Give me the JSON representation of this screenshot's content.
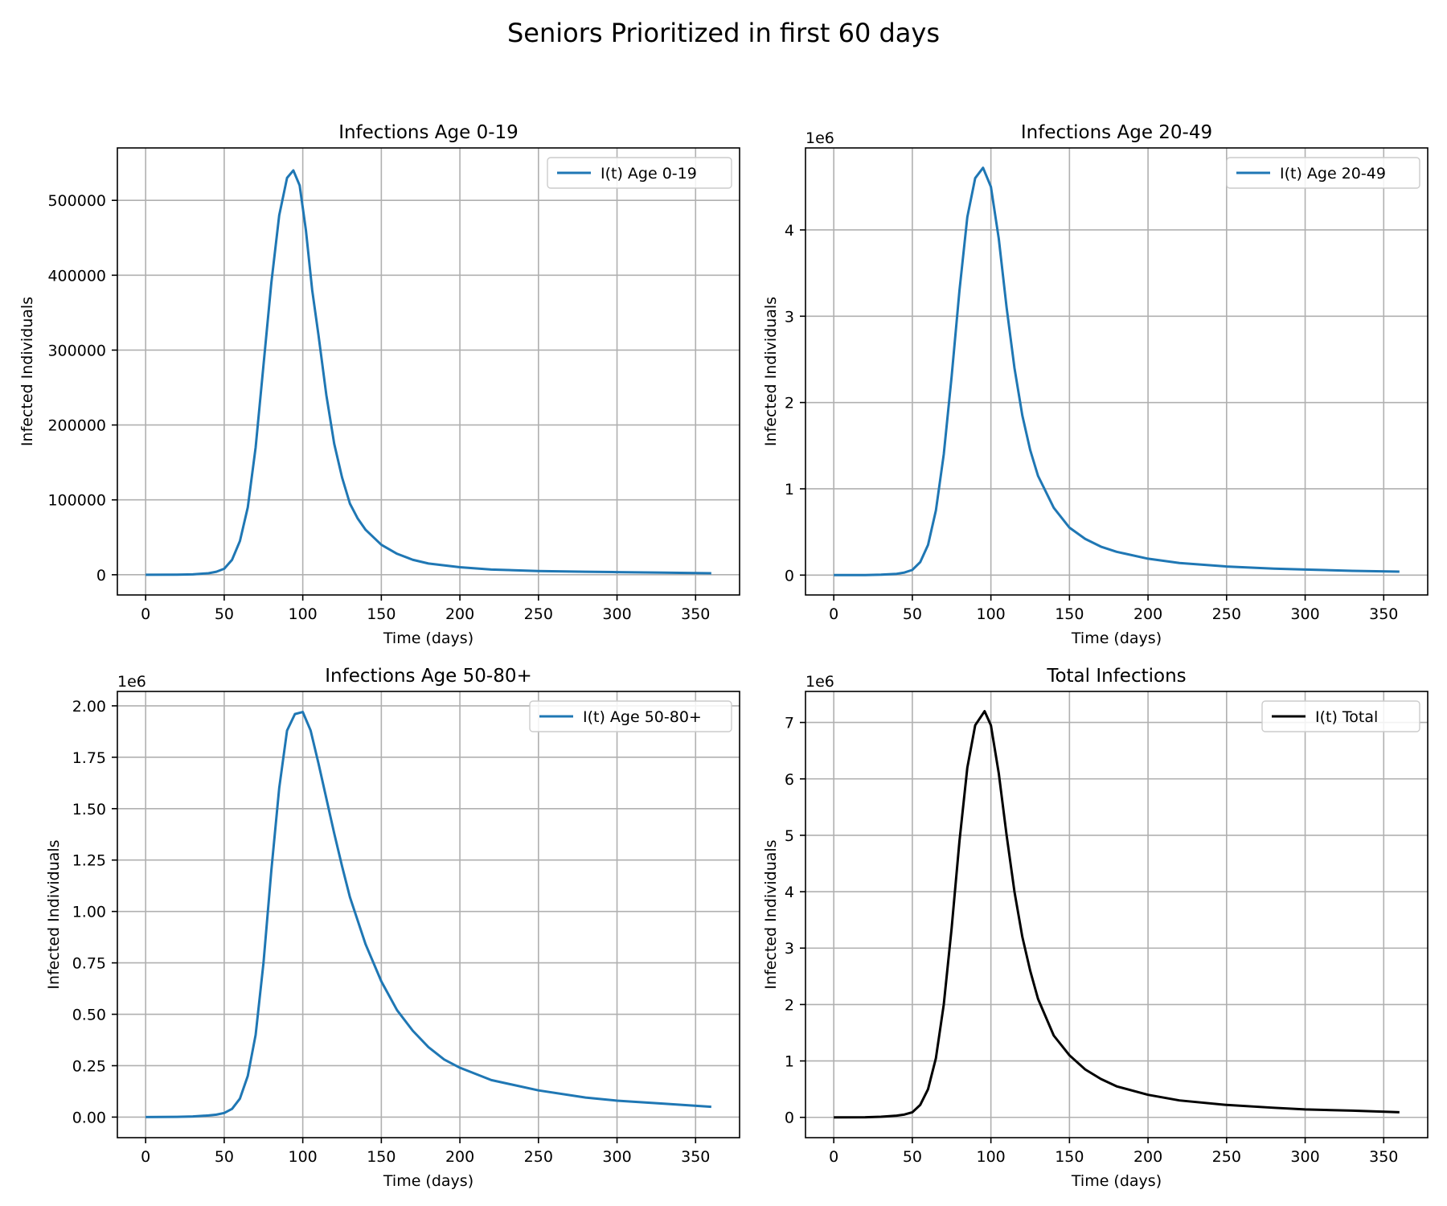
{
  "figure": {
    "title": "Seniors Prioritized in first 60 days"
  },
  "chart_data": [
    {
      "type": "line",
      "title": "Infections Age 0-19",
      "xlabel": "Time (days)",
      "ylabel": "Infected Individuals",
      "y_offset_label": "",
      "xlim": [
        -18,
        378
      ],
      "ylim": [
        -27000,
        570000
      ],
      "xticks": [
        0,
        50,
        100,
        150,
        200,
        250,
        300,
        350
      ],
      "xtick_labels": [
        "0",
        "50",
        "100",
        "150",
        "200",
        "250",
        "300",
        "350"
      ],
      "yticks": [
        0,
        100000,
        200000,
        300000,
        400000,
        500000
      ],
      "ytick_labels": [
        "0",
        "100000",
        "200000",
        "300000",
        "400000",
        "500000"
      ],
      "grid": true,
      "legend_position": "upper-right",
      "series": [
        {
          "name": "I(t) Age 0-19",
          "color": "#1f77b4",
          "x": [
            0,
            20,
            30,
            40,
            45,
            50,
            55,
            60,
            65,
            70,
            75,
            80,
            85,
            90,
            94,
            98,
            102,
            106,
            110,
            115,
            120,
            125,
            130,
            135,
            140,
            150,
            160,
            170,
            180,
            200,
            220,
            250,
            280,
            300,
            330,
            360
          ],
          "y": [
            0,
            100,
            500,
            2000,
            4000,
            8000,
            20000,
            45000,
            90000,
            170000,
            280000,
            390000,
            480000,
            530000,
            540000,
            520000,
            460000,
            380000,
            320000,
            240000,
            175000,
            130000,
            95000,
            75000,
            60000,
            40000,
            28000,
            20000,
            15000,
            10000,
            7000,
            5000,
            4000,
            3500,
            2800,
            2000
          ]
        }
      ]
    },
    {
      "type": "line",
      "title": "Infections Age 20-49",
      "xlabel": "Time (days)",
      "ylabel": "Infected Individuals",
      "y_offset_label": "1e6",
      "xlim": [
        -18,
        378
      ],
      "ylim": [
        -0.23,
        4.95
      ],
      "xticks": [
        0,
        50,
        100,
        150,
        200,
        250,
        300,
        350
      ],
      "xtick_labels": [
        "0",
        "50",
        "100",
        "150",
        "200",
        "250",
        "300",
        "350"
      ],
      "yticks": [
        0,
        1,
        2,
        3,
        4
      ],
      "ytick_labels": [
        "0",
        "1",
        "2",
        "3",
        "4"
      ],
      "grid": true,
      "legend_position": "upper-right",
      "series": [
        {
          "name": "I(t) Age 20-49",
          "color": "#1f77b4",
          "x": [
            0,
            20,
            30,
            40,
            45,
            50,
            55,
            60,
            65,
            70,
            75,
            80,
            85,
            90,
            95,
            100,
            105,
            110,
            115,
            120,
            125,
            130,
            140,
            150,
            160,
            170,
            180,
            200,
            220,
            250,
            280,
            300,
            330,
            360
          ],
          "y": [
            0,
            0.001,
            0.005,
            0.015,
            0.03,
            0.06,
            0.15,
            0.35,
            0.75,
            1.4,
            2.3,
            3.3,
            4.15,
            4.6,
            4.72,
            4.5,
            3.9,
            3.1,
            2.4,
            1.85,
            1.45,
            1.15,
            0.78,
            0.55,
            0.42,
            0.33,
            0.27,
            0.19,
            0.14,
            0.1,
            0.075,
            0.065,
            0.05,
            0.04
          ]
        }
      ]
    },
    {
      "type": "line",
      "title": "Infections Age 50-80+",
      "xlabel": "Time (days)",
      "ylabel": "Infected Individuals",
      "y_offset_label": "1e6",
      "xlim": [
        -18,
        378
      ],
      "ylim": [
        -0.1,
        2.07
      ],
      "xticks": [
        0,
        50,
        100,
        150,
        200,
        250,
        300,
        350
      ],
      "xtick_labels": [
        "0",
        "50",
        "100",
        "150",
        "200",
        "250",
        "300",
        "350"
      ],
      "yticks": [
        0,
        0.25,
        0.5,
        0.75,
        1.0,
        1.25,
        1.5,
        1.75,
        2.0
      ],
      "ytick_labels": [
        "0.00",
        "0.25",
        "0.50",
        "0.75",
        "1.00",
        "1.25",
        "1.50",
        "1.75",
        "2.00"
      ],
      "grid": true,
      "legend_position": "upper-right",
      "series": [
        {
          "name": "I(t) Age 50-80+",
          "color": "#1f77b4",
          "x": [
            0,
            20,
            30,
            40,
            45,
            50,
            55,
            60,
            65,
            70,
            75,
            80,
            85,
            90,
            95,
            100,
            105,
            110,
            115,
            120,
            125,
            130,
            140,
            150,
            160,
            170,
            180,
            190,
            200,
            220,
            250,
            280,
            300,
            330,
            360
          ],
          "y": [
            0,
            0.001,
            0.003,
            0.008,
            0.012,
            0.02,
            0.04,
            0.09,
            0.2,
            0.4,
            0.75,
            1.2,
            1.6,
            1.88,
            1.96,
            1.97,
            1.88,
            1.72,
            1.55,
            1.38,
            1.22,
            1.07,
            0.84,
            0.66,
            0.52,
            0.42,
            0.34,
            0.28,
            0.24,
            0.18,
            0.13,
            0.095,
            0.08,
            0.065,
            0.05
          ]
        }
      ]
    },
    {
      "type": "line",
      "title": "Total Infections",
      "xlabel": "Time (days)",
      "ylabel": "Infected Individuals",
      "y_offset_label": "1e6",
      "xlim": [
        -18,
        378
      ],
      "ylim": [
        -0.36,
        7.55
      ],
      "xticks": [
        0,
        50,
        100,
        150,
        200,
        250,
        300,
        350
      ],
      "xtick_labels": [
        "0",
        "50",
        "100",
        "150",
        "200",
        "250",
        "300",
        "350"
      ],
      "yticks": [
        0,
        1,
        2,
        3,
        4,
        5,
        6,
        7
      ],
      "ytick_labels": [
        "0",
        "1",
        "2",
        "3",
        "4",
        "5",
        "6",
        "7"
      ],
      "grid": true,
      "legend_position": "upper-right",
      "series": [
        {
          "name": "I(t) Total",
          "color": "#000000",
          "x": [
            0,
            20,
            30,
            40,
            45,
            50,
            55,
            60,
            65,
            70,
            75,
            80,
            85,
            90,
            96,
            100,
            105,
            110,
            115,
            120,
            125,
            130,
            140,
            150,
            160,
            170,
            180,
            200,
            220,
            250,
            280,
            300,
            330,
            360
          ],
          "y": [
            0,
            0.002,
            0.01,
            0.03,
            0.05,
            0.09,
            0.22,
            0.5,
            1.05,
            2.0,
            3.35,
            4.9,
            6.2,
            6.95,
            7.2,
            6.95,
            6.1,
            5.0,
            4.0,
            3.2,
            2.6,
            2.1,
            1.45,
            1.1,
            0.85,
            0.68,
            0.55,
            0.4,
            0.3,
            0.22,
            0.17,
            0.14,
            0.12,
            0.09
          ]
        }
      ]
    }
  ]
}
